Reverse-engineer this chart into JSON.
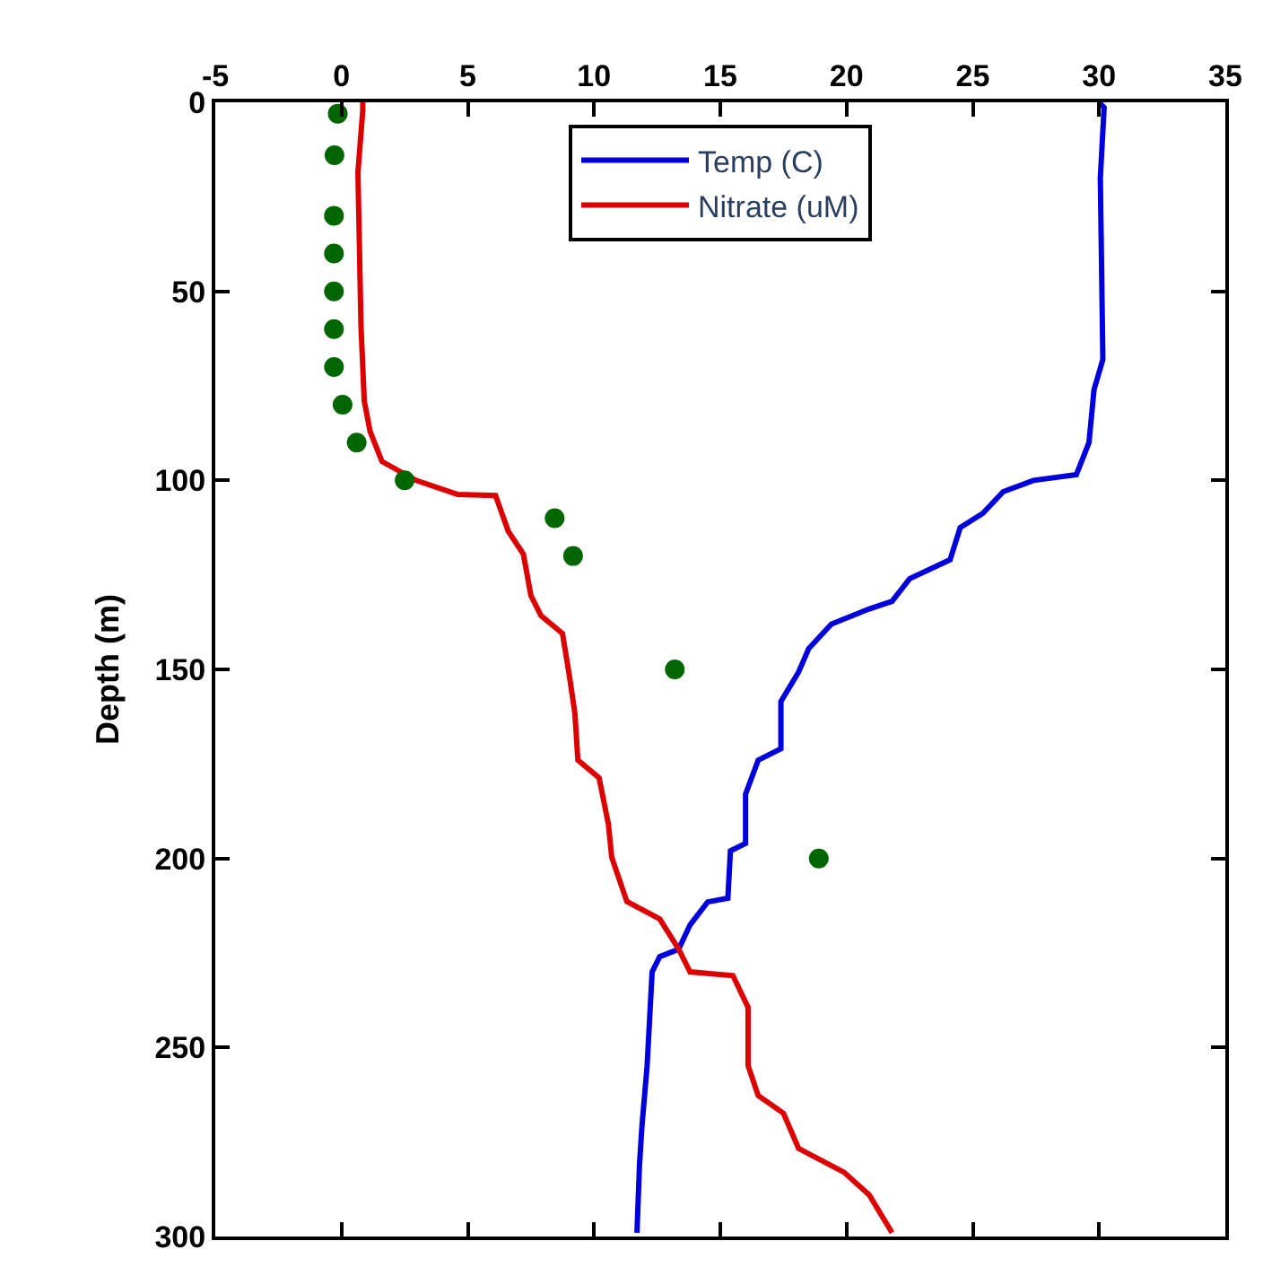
{
  "chart_data": {
    "type": "line",
    "ylabel": "Depth (m)",
    "xlim": [
      -5,
      35
    ],
    "xticks": [
      -5,
      0,
      5,
      10,
      15,
      20,
      25,
      30,
      35
    ],
    "ylim": [
      300,
      0
    ],
    "yticks": [
      0,
      50,
      100,
      150,
      200,
      250,
      300
    ],
    "legend": "top",
    "line_style": "solid",
    "series": [
      {
        "name": "Temp (C)",
        "color": "#0000dd",
        "marker": "none",
        "x": [
          30.0,
          30.2,
          30.05,
          30.15,
          29.8,
          29.6,
          29.1,
          27.4,
          26.2,
          25.4,
          24.5,
          24.1,
          22.5,
          21.8,
          20.9,
          19.4,
          18.5,
          18.1,
          17.4,
          17.4,
          16.5,
          16.0,
          16.0,
          15.4,
          15.3,
          14.5,
          13.8,
          13.35,
          12.6,
          12.3,
          12.1,
          11.9,
          11.8,
          11.7
        ],
        "values": [
          0,
          1.4,
          20,
          68,
          76,
          90,
          98.5,
          100,
          103,
          108.7,
          112.5,
          121,
          126,
          132,
          134,
          138,
          144.5,
          150.7,
          158.5,
          171,
          174,
          183,
          196,
          198,
          210.5,
          211.5,
          217.6,
          224,
          226,
          230,
          255,
          270.5,
          281,
          299
        ]
      },
      {
        "name": "Nitrate (uM)",
        "color": "#dd0000",
        "marker": "none",
        "x": [
          0.84,
          0.84,
          0.65,
          0.77,
          0.9,
          1.13,
          1.6,
          2.95,
          4.6,
          6.1,
          6.6,
          7.2,
          7.5,
          7.9,
          8.75,
          9.0,
          9.24,
          9.36,
          10.2,
          10.57,
          10.7,
          11.3,
          12.6,
          13.35,
          13.8,
          15.5,
          16.1,
          16.1,
          16.5,
          17.5,
          18.1,
          19.9,
          20.9,
          21.8
        ],
        "values": [
          0,
          2.2,
          18.5,
          59,
          79,
          87,
          95,
          100,
          103.7,
          104,
          113.4,
          119.5,
          130.5,
          135.8,
          140.5,
          150.7,
          161.5,
          174,
          178.7,
          191,
          199.7,
          211.4,
          216,
          224,
          230,
          231,
          239.4,
          254.8,
          262.7,
          267.4,
          276.7,
          283,
          289,
          299
        ]
      },
      {
        "color": "#006600",
        "type": "scatter",
        "marker": "circle",
        "x": [
          -0.15,
          -0.28,
          -0.3,
          -0.3,
          -0.3,
          -0.3,
          -0.3,
          0.04,
          0.6,
          2.5,
          8.44,
          9.17,
          13.2,
          18.9
        ],
        "values": [
          3,
          14,
          30,
          40,
          50,
          60,
          70,
          80,
          90,
          100,
          110,
          120,
          150,
          200
        ]
      }
    ]
  }
}
